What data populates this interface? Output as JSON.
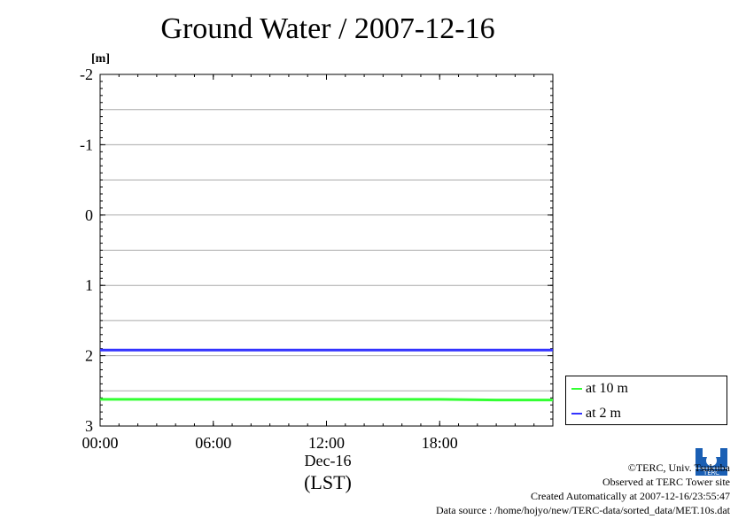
{
  "title": "Ground Water / 2007-12-16",
  "chart_data": {
    "type": "line",
    "ylabel": "[m]",
    "yinverted": true,
    "ylim": [
      -2,
      3
    ],
    "yticks": [
      "-2",
      "-1",
      "0",
      "1",
      "2",
      "3"
    ],
    "xlim": [
      0,
      24
    ],
    "xticks": [
      "00:00",
      "06:00",
      "12:00",
      "18:00"
    ],
    "xdate": "Dec-16",
    "xunit": "(LST)",
    "grid": true,
    "legend_position": "right",
    "series": [
      {
        "name": "at 10 m",
        "color": "#33ff33",
        "x": [
          0,
          3,
          6,
          9,
          12,
          15,
          18,
          21,
          24
        ],
        "values": [
          2.62,
          2.62,
          2.62,
          2.62,
          2.62,
          2.62,
          2.62,
          2.63,
          2.63
        ]
      },
      {
        "name": "at 2 m",
        "color": "#3333ff",
        "x": [
          0,
          3,
          6,
          9,
          12,
          15,
          18,
          21,
          24
        ],
        "values": [
          1.92,
          1.92,
          1.92,
          1.92,
          1.92,
          1.92,
          1.92,
          1.92,
          1.92
        ]
      }
    ]
  },
  "credits": {
    "line1": "©TERC, Univ. Tsukuba",
    "line2": "Observed at TERC Tower site",
    "line3": "Created Automatically at 2007-12-16/23:55:47",
    "line4": "Data source : /home/hojyo/new/TERC-data/sorted_data/MET.10s.dat"
  },
  "logo_text": "TERC"
}
